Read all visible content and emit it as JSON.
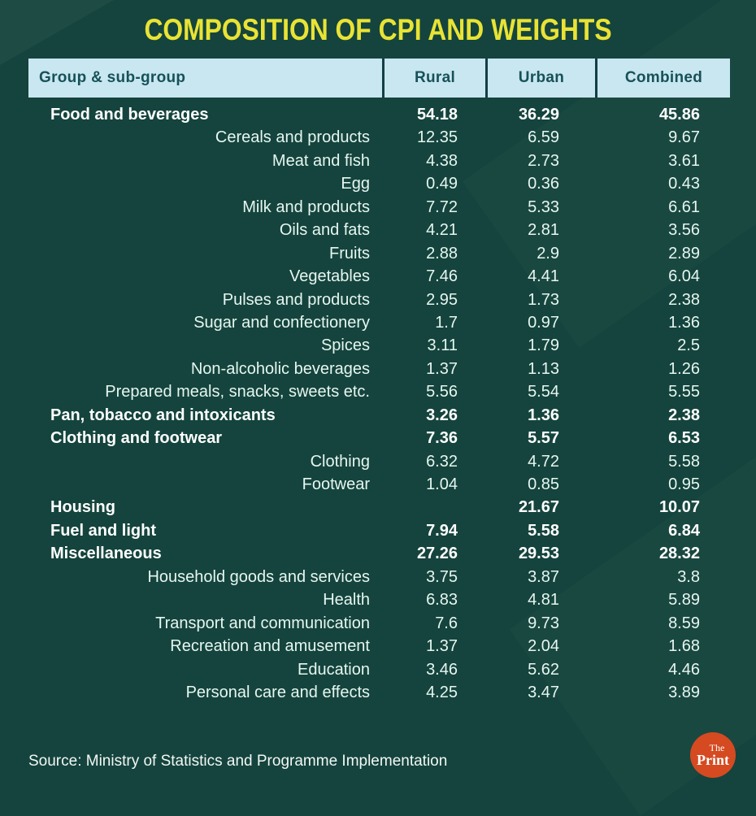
{
  "title": "COMPOSITION OF CPI AND WEIGHTS",
  "source": "Source: Ministry of Statistics and Programme Implementation",
  "logo": {
    "the": "The",
    "print": "Print"
  },
  "colors": {
    "background": "#14443d",
    "title_yellow": "#e9e335",
    "header_bg": "#c9e7f0",
    "header_text": "#175159",
    "row_text": "#e7f6f1",
    "bold_row_text": "#ffffff",
    "logo_orange": "#d54a20"
  },
  "chart_data": {
    "type": "table",
    "title": "COMPOSITION OF CPI AND WEIGHTS",
    "columns": [
      "Group & sub-group",
      "Rural",
      "Urban",
      "Combined"
    ],
    "rows": [
      {
        "label": "Food and beverages",
        "bold": true,
        "rural": 54.18,
        "urban": 36.29,
        "combined": 45.86
      },
      {
        "label": "Cereals and products",
        "bold": false,
        "rural": 12.35,
        "urban": 6.59,
        "combined": 9.67
      },
      {
        "label": "Meat and fish",
        "bold": false,
        "rural": 4.38,
        "urban": 2.73,
        "combined": 3.61
      },
      {
        "label": "Egg",
        "bold": false,
        "rural": 0.49,
        "urban": 0.36,
        "combined": 0.43
      },
      {
        "label": "Milk and products",
        "bold": false,
        "rural": 7.72,
        "urban": 5.33,
        "combined": 6.61
      },
      {
        "label": "Oils and fats",
        "bold": false,
        "rural": 4.21,
        "urban": 2.81,
        "combined": 3.56
      },
      {
        "label": "Fruits",
        "bold": false,
        "rural": 2.88,
        "urban": 2.9,
        "combined": 2.89
      },
      {
        "label": "Vegetables",
        "bold": false,
        "rural": 7.46,
        "urban": 4.41,
        "combined": 6.04
      },
      {
        "label": "Pulses and products",
        "bold": false,
        "rural": 2.95,
        "urban": 1.73,
        "combined": 2.38
      },
      {
        "label": "Sugar and confectionery",
        "bold": false,
        "rural": 1.7,
        "urban": 0.97,
        "combined": 1.36
      },
      {
        "label": "Spices",
        "bold": false,
        "rural": 3.11,
        "urban": 1.79,
        "combined": 2.5
      },
      {
        "label": "Non-alcoholic beverages",
        "bold": false,
        "rural": 1.37,
        "urban": 1.13,
        "combined": 1.26
      },
      {
        "label": "Prepared meals, snacks, sweets etc.",
        "bold": false,
        "rural": 5.56,
        "urban": 5.54,
        "combined": 5.55
      },
      {
        "label": "Pan, tobacco and intoxicants",
        "bold": true,
        "rural": 3.26,
        "urban": 1.36,
        "combined": 2.38
      },
      {
        "label": "Clothing and footwear",
        "bold": true,
        "rural": 7.36,
        "urban": 5.57,
        "combined": 6.53
      },
      {
        "label": "Clothing",
        "bold": false,
        "rural": 6.32,
        "urban": 4.72,
        "combined": 5.58
      },
      {
        "label": "Footwear",
        "bold": false,
        "rural": 1.04,
        "urban": 0.85,
        "combined": 0.95
      },
      {
        "label": "Housing",
        "bold": true,
        "rural": null,
        "urban": 21.67,
        "combined": 10.07
      },
      {
        "label": "Fuel and light",
        "bold": true,
        "rural": 7.94,
        "urban": 5.58,
        "combined": 6.84
      },
      {
        "label": "Miscellaneous",
        "bold": true,
        "rural": 27.26,
        "urban": 29.53,
        "combined": 28.32
      },
      {
        "label": "Household goods and services",
        "bold": false,
        "rural": 3.75,
        "urban": 3.87,
        "combined": 3.8
      },
      {
        "label": "Health",
        "bold": false,
        "rural": 6.83,
        "urban": 4.81,
        "combined": 5.89
      },
      {
        "label": "Transport and communication",
        "bold": false,
        "rural": 7.6,
        "urban": 9.73,
        "combined": 8.59
      },
      {
        "label": "Recreation and amusement",
        "bold": false,
        "rural": 1.37,
        "urban": 2.04,
        "combined": 1.68
      },
      {
        "label": "Education",
        "bold": false,
        "rural": 3.46,
        "urban": 5.62,
        "combined": 4.46
      },
      {
        "label": "Personal care and effects",
        "bold": false,
        "rural": 4.25,
        "urban": 3.47,
        "combined": 3.89
      }
    ]
  }
}
